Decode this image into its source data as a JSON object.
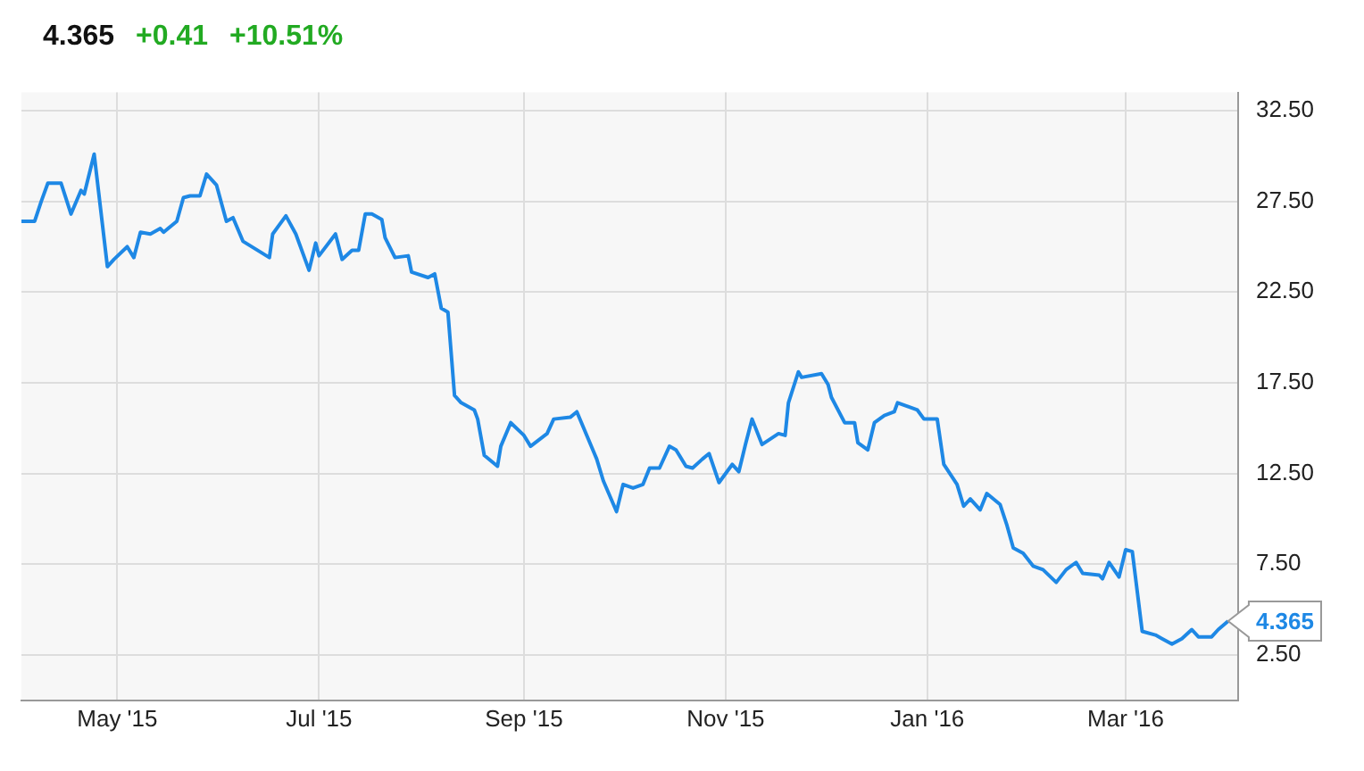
{
  "chart_data": {
    "type": "line",
    "annotations": [
      "4.365",
      "+0.41",
      "+10.51%",
      {
        "text": "4.365",
        "x": "2016-04-01",
        "y": 4.365
      }
    ],
    "x": [
      "2015-04-02",
      "2015-04-06",
      "2015-04-08",
      "2015-04-10",
      "2015-04-14",
      "2015-04-17",
      "2015-04-20",
      "2015-04-21",
      "2015-04-24",
      "2015-04-28",
      "2015-04-30",
      "2015-05-04",
      "2015-05-06",
      "2015-05-08",
      "2015-05-11",
      "2015-05-14",
      "2015-05-15",
      "2015-05-19",
      "2015-05-21",
      "2015-05-23",
      "2015-05-26",
      "2015-05-28",
      "2015-05-31",
      "2015-06-03",
      "2015-06-05",
      "2015-06-08",
      "2015-06-16",
      "2015-06-17",
      "2015-06-21",
      "2015-06-24",
      "2015-06-28",
      "2015-06-30",
      "2015-07-01",
      "2015-07-06",
      "2015-07-08",
      "2015-07-11",
      "2015-07-13",
      "2015-07-15",
      "2015-07-17",
      "2015-07-20",
      "2015-07-21",
      "2015-07-24",
      "2015-07-28",
      "2015-07-29",
      "2015-08-03",
      "2015-08-05",
      "2015-08-07",
      "2015-08-09",
      "2015-08-11",
      "2015-08-13",
      "2015-08-17",
      "2015-08-18",
      "2015-08-20",
      "2015-08-24",
      "2015-08-25",
      "2015-08-28",
      "2015-09-01",
      "2015-09-03",
      "2015-09-08",
      "2015-09-10",
      "2015-09-15",
      "2015-09-17",
      "2015-09-23",
      "2015-09-25",
      "2015-09-29",
      "2015-10-01",
      "2015-10-04",
      "2015-10-07",
      "2015-10-09",
      "2015-10-12",
      "2015-10-15",
      "2015-10-17",
      "2015-10-20",
      "2015-10-22",
      "2015-10-25",
      "2015-10-27",
      "2015-10-30",
      "2015-11-03",
      "2015-11-05",
      "2015-11-07",
      "2015-11-09",
      "2015-11-12",
      "2015-11-17",
      "2015-11-19",
      "2015-11-20",
      "2015-11-23",
      "2015-11-24",
      "2015-11-30",
      "2015-12-02",
      "2015-12-03",
      "2015-12-07",
      "2015-12-10",
      "2015-12-11",
      "2015-12-14",
      "2015-12-16",
      "2015-12-19",
      "2015-12-22",
      "2015-12-23",
      "2015-12-29",
      "2015-12-31",
      "2016-01-04",
      "2016-01-06",
      "2016-01-10",
      "2016-01-12",
      "2016-01-14",
      "2016-01-17",
      "2016-01-19",
      "2016-01-23",
      "2016-01-25",
      "2016-01-27",
      "2016-01-30",
      "2016-02-02",
      "2016-02-05",
      "2016-02-09",
      "2016-02-12",
      "2016-02-15",
      "2016-02-17",
      "2016-02-22",
      "2016-02-23",
      "2016-02-25",
      "2016-02-28",
      "2016-03-01",
      "2016-03-03",
      "2016-03-06",
      "2016-03-10",
      "2016-03-12",
      "2016-03-15",
      "2016-03-18",
      "2016-03-21",
      "2016-03-23",
      "2016-03-27",
      "2016-03-29",
      "2016-04-01"
    ],
    "series": [
      {
        "color": "#1e88e5",
        "values": [
          26.4,
          26.4,
          27.5,
          28.5,
          28.5,
          26.8,
          28.1,
          27.9,
          30.1,
          23.9,
          24.3,
          25.0,
          24.4,
          25.8,
          25.7,
          26.0,
          25.8,
          26.4,
          27.7,
          27.8,
          27.8,
          29.0,
          28.4,
          26.4,
          26.6,
          25.3,
          24.4,
          25.7,
          26.7,
          25.7,
          23.7,
          25.2,
          24.5,
          25.7,
          24.3,
          24.8,
          24.8,
          26.8,
          26.8,
          26.5,
          25.5,
          24.4,
          24.5,
          23.6,
          23.3,
          23.5,
          21.6,
          21.4,
          16.8,
          16.4,
          16.0,
          15.5,
          13.5,
          12.9,
          14.0,
          15.3,
          14.6,
          14.0,
          14.7,
          15.5,
          15.6,
          15.9,
          13.3,
          12.1,
          10.4,
          11.9,
          11.7,
          11.9,
          12.8,
          12.8,
          14.0,
          13.8,
          12.9,
          12.8,
          13.3,
          13.6,
          12.0,
          13.0,
          12.6,
          14.1,
          15.5,
          14.1,
          14.7,
          14.6,
          16.4,
          18.1,
          17.8,
          18.0,
          17.4,
          16.7,
          15.3,
          15.3,
          14.2,
          13.8,
          15.3,
          15.7,
          15.9,
          16.4,
          16.0,
          15.5,
          15.5,
          13.0,
          11.9,
          10.7,
          11.1,
          10.5,
          11.4,
          10.8,
          9.7,
          8.4,
          8.1,
          7.4,
          7.2,
          6.5,
          7.2,
          7.6,
          7.0,
          6.9,
          6.7,
          7.6,
          6.8,
          8.3,
          8.2,
          3.8,
          3.6,
          3.4,
          3.1,
          3.4,
          3.9,
          3.5,
          3.5,
          3.9,
          4.365
        ]
      }
    ],
    "xlim": [
      "2015-04-02",
      "2016-04-04"
    ],
    "xticks": [
      {
        "value": "2015-05-01",
        "label": "May '15"
      },
      {
        "value": "2015-07-01",
        "label": "Jul '15"
      },
      {
        "value": "2015-09-01",
        "label": "Sep '15"
      },
      {
        "value": "2015-11-01",
        "label": "Nov '15"
      },
      {
        "value": "2016-01-01",
        "label": "Jan '16"
      },
      {
        "value": "2016-03-01",
        "label": "Mar '16"
      }
    ],
    "ylim": [
      0,
      33.5
    ],
    "yticks": [
      {
        "value": 2.5,
        "label": "2.50"
      },
      {
        "value": 7.5,
        "label": "7.50"
      },
      {
        "value": 12.5,
        "label": "12.50"
      },
      {
        "value": 17.5,
        "label": "17.50"
      },
      {
        "value": 22.5,
        "label": "22.50"
      },
      {
        "value": 27.5,
        "label": "27.50"
      },
      {
        "value": 32.5,
        "label": "32.50"
      }
    ],
    "grid": true,
    "legend": false,
    "marker": "none",
    "line_style": "solid"
  }
}
